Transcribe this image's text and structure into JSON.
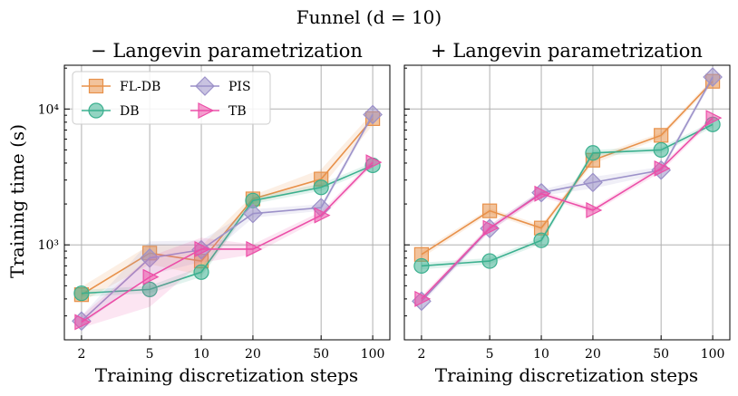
{
  "figure": {
    "suptitle": "Funnel (d = 10)",
    "colors": {
      "FL-DB": "#e8914a",
      "DB": "#3bb08f",
      "PIS": "#9c91c9",
      "TB": "#ec4fa8"
    }
  },
  "chart_data": [
    {
      "type": "line",
      "title": "− Langevin parametrization",
      "xlabel": "Training discretization steps",
      "ylabel": "Training time (s)",
      "xscale": "log",
      "yscale": "log",
      "categories": [
        "2",
        "5",
        "10",
        "20",
        "50",
        "100"
      ],
      "x": [
        2,
        5,
        10,
        20,
        50,
        100
      ],
      "ylim": [
        200,
        21000
      ],
      "yticks": [
        {
          "value": 1000,
          "label": "10³"
        },
        {
          "value": 10000,
          "label": "10⁴"
        }
      ],
      "legend": "upper-left",
      "series": [
        {
          "name": "FL-DB",
          "marker": "square",
          "values": [
            430,
            870,
            760,
            2180,
            3050,
            8500
          ],
          "band": [
            [
              380,
              490
            ],
            [
              720,
              1000
            ],
            [
              600,
              980
            ],
            [
              2050,
              2320
            ],
            [
              2650,
              3600
            ],
            [
              7600,
              9400
            ]
          ]
        },
        {
          "name": "DB",
          "marker": "circle",
          "values": [
            440,
            470,
            630,
            2120,
            2650,
            3850
          ],
          "band": [
            [
              415,
              465
            ],
            [
              440,
              500
            ],
            [
              580,
              690
            ],
            [
              2000,
              2250
            ],
            [
              2500,
              2820
            ],
            [
              3650,
              4050
            ]
          ]
        },
        {
          "name": "PIS",
          "marker": "diamond",
          "values": [
            275,
            800,
            920,
            1700,
            1880,
            9100
          ],
          "band": [
            [
              255,
              300
            ],
            [
              600,
              1060
            ],
            [
              750,
              1080
            ],
            [
              1580,
              1830
            ],
            [
              1780,
              1990
            ],
            [
              8600,
              9600
            ]
          ]
        },
        {
          "name": "TB",
          "marker": "triangle-right",
          "values": [
            270,
            580,
            930,
            930,
            1650,
            4050
          ],
          "band": [
            [
              245,
              300
            ],
            [
              350,
              820
            ],
            [
              740,
              1130
            ],
            [
              850,
              1010
            ],
            [
              1560,
              1760
            ],
            [
              3850,
              4250
            ]
          ]
        }
      ]
    },
    {
      "type": "line",
      "title": "+ Langevin parametrization",
      "xlabel": "Training discretization steps",
      "ylabel": "",
      "xscale": "log",
      "yscale": "log",
      "categories": [
        "2",
        "5",
        "10",
        "20",
        "50",
        "100"
      ],
      "x": [
        2,
        5,
        10,
        20,
        50,
        100
      ],
      "ylim": [
        200,
        21000
      ],
      "series": [
        {
          "name": "FL-DB",
          "marker": "square",
          "values": [
            850,
            1780,
            1330,
            4200,
            6400,
            16000
          ],
          "band": [
            [
              800,
              900
            ],
            [
              1700,
              1860
            ],
            [
              1260,
              1400
            ],
            [
              3950,
              4450
            ],
            [
              6100,
              6700
            ],
            [
              15200,
              16800
            ]
          ]
        },
        {
          "name": "DB",
          "marker": "circle",
          "values": [
            700,
            760,
            1080,
            4750,
            5000,
            7700
          ],
          "band": [
            [
              660,
              740
            ],
            [
              720,
              800
            ],
            [
              1020,
              1140
            ],
            [
              4500,
              5000
            ],
            [
              4750,
              5250
            ],
            [
              7300,
              8100
            ]
          ]
        },
        {
          "name": "PIS",
          "marker": "diamond",
          "values": [
            385,
            1320,
            2420,
            2880,
            3550,
            17200
          ],
          "band": [
            [
              365,
              405
            ],
            [
              1250,
              1390
            ],
            [
              2300,
              2540
            ],
            [
              2600,
              3160
            ],
            [
              3350,
              3750
            ],
            [
              16300,
              18100
            ]
          ]
        },
        {
          "name": "TB",
          "marker": "triangle-right",
          "values": [
            400,
            1330,
            2380,
            1800,
            3650,
            8600
          ],
          "band": [
            [
              380,
              420
            ],
            [
              1260,
              1400
            ],
            [
              2260,
              2500
            ],
            [
              1720,
              1880
            ],
            [
              3450,
              3850
            ],
            [
              8200,
              9000
            ]
          ]
        }
      ]
    }
  ]
}
